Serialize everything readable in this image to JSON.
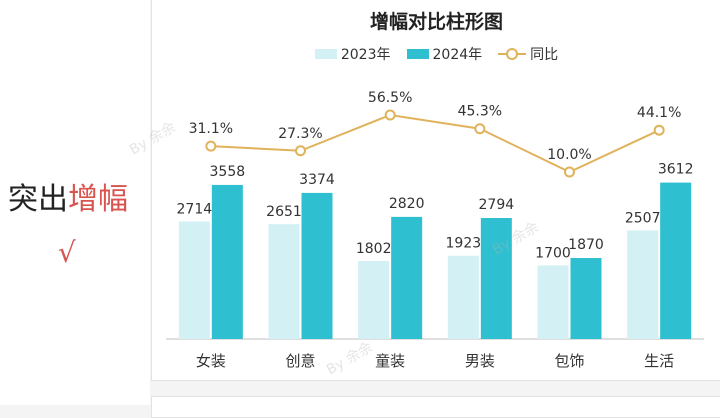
{
  "side": {
    "title_plain": "突出",
    "title_highlight": "增幅",
    "check_mark": "√"
  },
  "watermarks": [
    "By 余余",
    "By 余余",
    "By 余余"
  ],
  "colors": {
    "bar_2023": "#d3f0f4",
    "bar_2024": "#2ebfd0",
    "line_yoy": "#e0b25a"
  },
  "chart_data": {
    "type": "bar",
    "title": "增幅对比柱形图",
    "categories": [
      "女装",
      "创意",
      "童装",
      "男装",
      "包饰",
      "生活"
    ],
    "series": [
      {
        "name": "2023年",
        "values": [
          2714,
          2651,
          1802,
          1923,
          1700,
          2507
        ]
      },
      {
        "name": "2024年",
        "values": [
          3558,
          3374,
          2820,
          2794,
          1870,
          3612
        ]
      }
    ],
    "line_series": {
      "name": "同比",
      "values": [
        31.1,
        27.3,
        56.5,
        45.3,
        10.0,
        44.1
      ],
      "labels": [
        "31.1%",
        "27.3%",
        "56.5%",
        "45.3%",
        "10.0%",
        "44.1%"
      ]
    },
    "legend_position": "top",
    "xlabel": "",
    "ylabel": "",
    "ylim": [
      0,
      8000
    ]
  }
}
